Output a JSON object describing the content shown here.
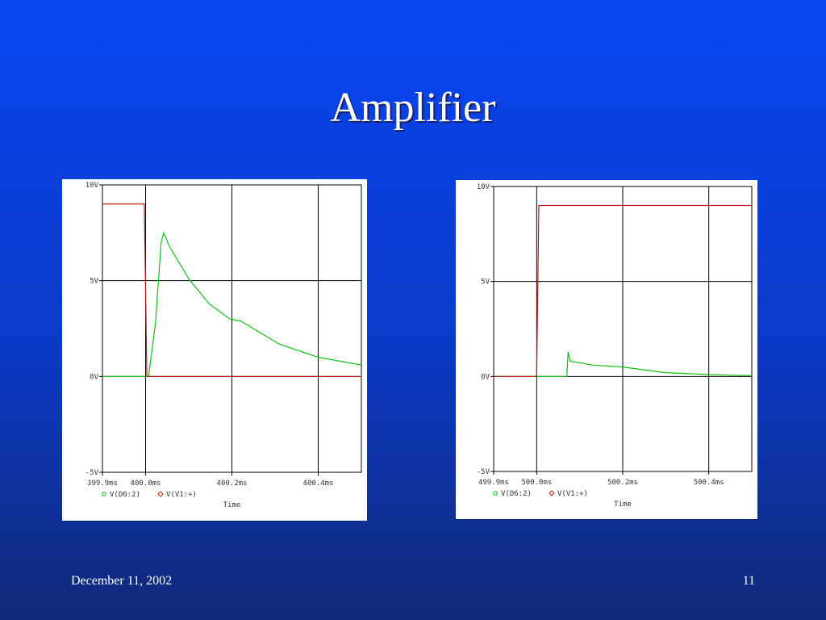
{
  "title": "Amplifier",
  "footer_date": "December 11, 2002",
  "page_number": "11",
  "chart_data": [
    {
      "type": "line",
      "x_label": "Time",
      "xlim": [
        399.9,
        400.5
      ],
      "xticks": [
        {
          "value": 399.9,
          "label": "399.9ms"
        },
        {
          "value": 400.0,
          "label": "400.0ms"
        },
        {
          "value": 400.2,
          "label": "400.2ms"
        },
        {
          "value": 400.4,
          "label": "400.4ms"
        }
      ],
      "ylim": [
        -5,
        10
      ],
      "yticks": [
        {
          "value": -5,
          "label": "-5V"
        },
        {
          "value": 0,
          "label": "0V"
        },
        {
          "value": 5,
          "label": "5V"
        },
        {
          "value": 10,
          "label": "10V"
        }
      ],
      "grid": true,
      "series": [
        {
          "name": "V(D6:2)",
          "color": "#10c010",
          "marker": "square",
          "x": [
            399.9,
            400.007,
            400.023,
            400.036,
            400.042,
            400.055,
            400.1,
            400.147,
            400.195,
            400.22,
            400.309,
            400.4,
            400.5
          ],
          "values": [
            0,
            0,
            2.8,
            7.0,
            7.5,
            6.8,
            5.1,
            3.8,
            3.0,
            2.9,
            1.7,
            1.0,
            0.6
          ]
        },
        {
          "name": "V(V1:+)",
          "color": "#c01818",
          "marker": "diamond",
          "x": [
            399.9,
            399.997,
            400.003,
            400.5
          ],
          "values": [
            9,
            9,
            0,
            0
          ]
        }
      ]
    },
    {
      "type": "line",
      "x_label": "Time",
      "xlim": [
        499.9,
        500.5
      ],
      "xticks": [
        {
          "value": 499.9,
          "label": "499.9ms"
        },
        {
          "value": 500.0,
          "label": "500.0ms"
        },
        {
          "value": 500.2,
          "label": "500.2ms"
        },
        {
          "value": 500.4,
          "label": "500.4ms"
        }
      ],
      "ylim": [
        -5,
        10
      ],
      "yticks": [
        {
          "value": -5,
          "label": "-5V"
        },
        {
          "value": 0,
          "label": "0V"
        },
        {
          "value": 5,
          "label": "5V"
        },
        {
          "value": 10,
          "label": "10V"
        }
      ],
      "grid": true,
      "series": [
        {
          "name": "V(D6:2)",
          "color": "#10c010",
          "marker": "square",
          "x": [
            499.9,
            500.07,
            500.073,
            500.078,
            500.13,
            500.2,
            500.3,
            500.4,
            500.5
          ],
          "values": [
            0,
            0,
            1.3,
            0.8,
            0.6,
            0.5,
            0.2,
            0.1,
            0.05
          ]
        },
        {
          "name": "V(V1:+)",
          "color": "#c01818",
          "marker": "diamond",
          "x": [
            499.9,
            500.0,
            500.005,
            500.5
          ],
          "values": [
            0,
            0,
            9,
            9
          ]
        }
      ]
    }
  ]
}
